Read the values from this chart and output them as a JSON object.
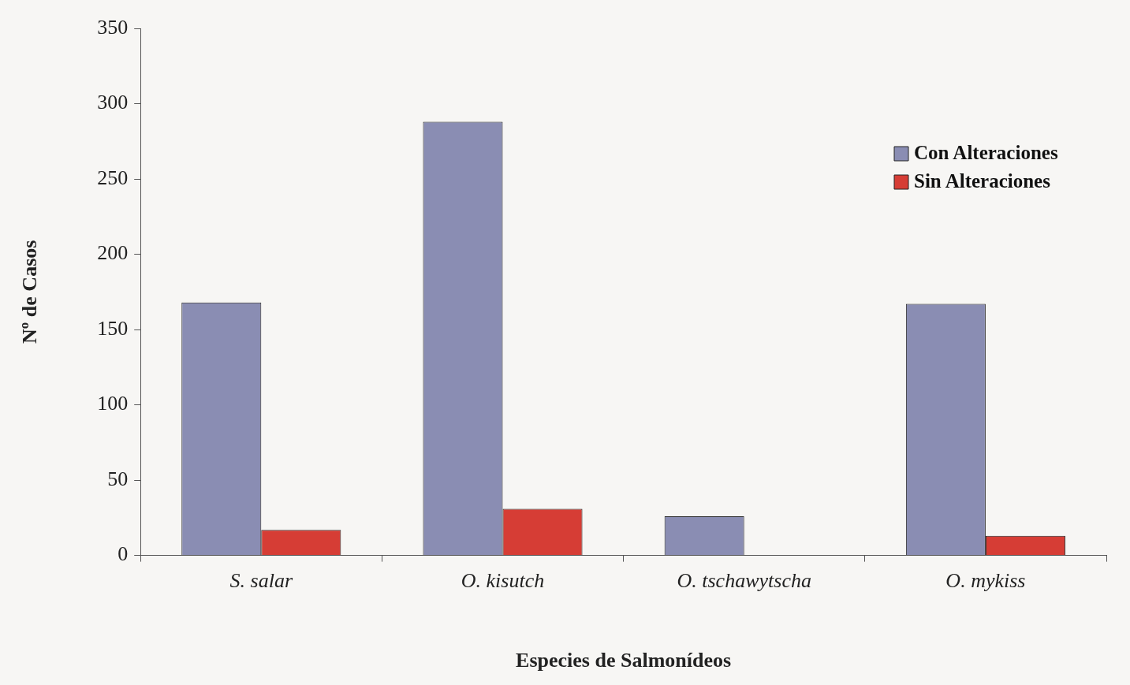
{
  "chart_data": {
    "type": "bar",
    "xlabel": "Especies de Salmonídeos",
    "ylabel": "Nº de Casos",
    "categories": [
      "S. salar",
      "O. kisutch",
      "O. tschawytscha",
      "O. mykiss"
    ],
    "series": [
      {
        "name": "Con Alteraciones",
        "color": "#8a8db3",
        "values": [
          168,
          288,
          26,
          167
        ]
      },
      {
        "name": "Sin Alteraciones",
        "color": "#d63d35",
        "values": [
          17,
          31,
          0,
          13
        ]
      }
    ],
    "ylim": [
      0,
      350
    ],
    "yticks": [
      0,
      50,
      100,
      150,
      200,
      250,
      300,
      350
    ],
    "grid": false,
    "legend": "top right"
  }
}
